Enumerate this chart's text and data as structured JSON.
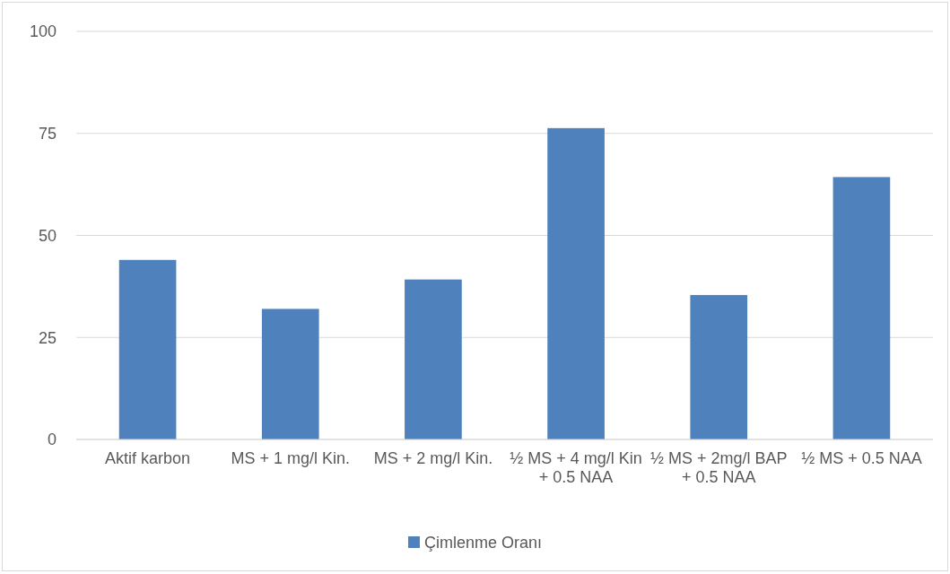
{
  "chart_data": {
    "type": "bar",
    "categories": [
      "Aktif karbon",
      "MS + 1 mg/l Kin.",
      "MS + 2 mg/l Kin.",
      "½ MS + 4 mg/l Kin + 0.5 NAA",
      "½ MS + 2mg/l BAP + 0.5 NAA",
      "½ MS + 0.5 NAA"
    ],
    "series": [
      {
        "name": "Çimlenme Oranı",
        "color": "#4f81bd",
        "values": [
          44,
          32,
          39.2,
          76.3,
          35.4,
          64.3
        ]
      }
    ],
    "ylim": [
      0,
      100
    ],
    "yticks": [
      0,
      25,
      50,
      75,
      100
    ],
    "grid": "y",
    "legend": "bottom"
  }
}
